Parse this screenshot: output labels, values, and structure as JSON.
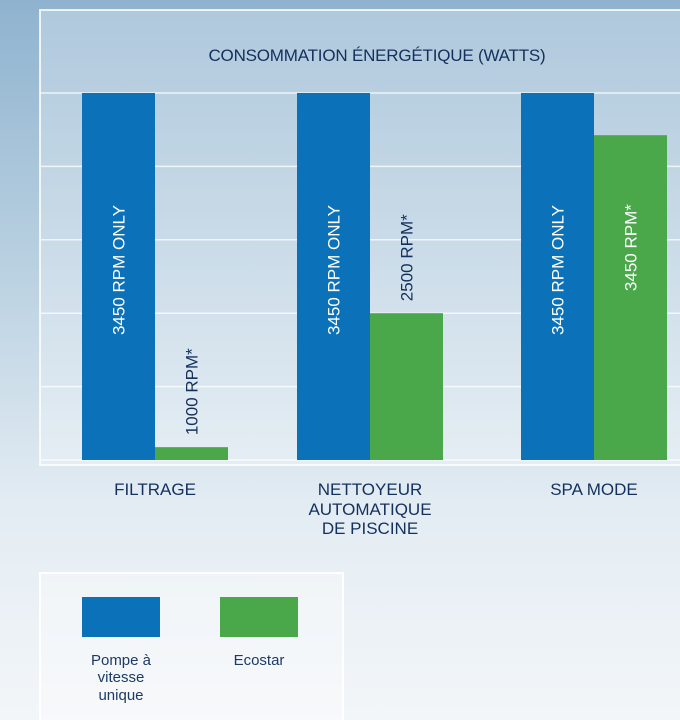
{
  "chart_data": {
    "type": "bar",
    "title": "CONSOMMATION ÉNERGÉTIQUE (WATTS)",
    "categories": [
      "FILTRAGE",
      "NETTOYEUR AUTOMATIQUE DE PISCINE",
      "SPA MODE"
    ],
    "series": [
      {
        "name": "Pompe à vitesse unique",
        "color": "#0b72b9",
        "values": [
          100,
          100,
          100
        ],
        "bar_labels": [
          "3450 RPM ONLY",
          "3450 RPM ONLY",
          "3450 RPM ONLY"
        ]
      },
      {
        "name": "Ecostar",
        "color": "#4aa84b",
        "values": [
          3.5,
          40,
          88.5
        ],
        "bar_labels": [
          "1000 RPM*",
          "2500 RPM*",
          "3450 RPM*"
        ]
      }
    ],
    "ylim": [
      0,
      100
    ],
    "yticks": [
      0,
      20,
      40,
      60,
      80,
      100
    ],
    "grid": true
  }
}
